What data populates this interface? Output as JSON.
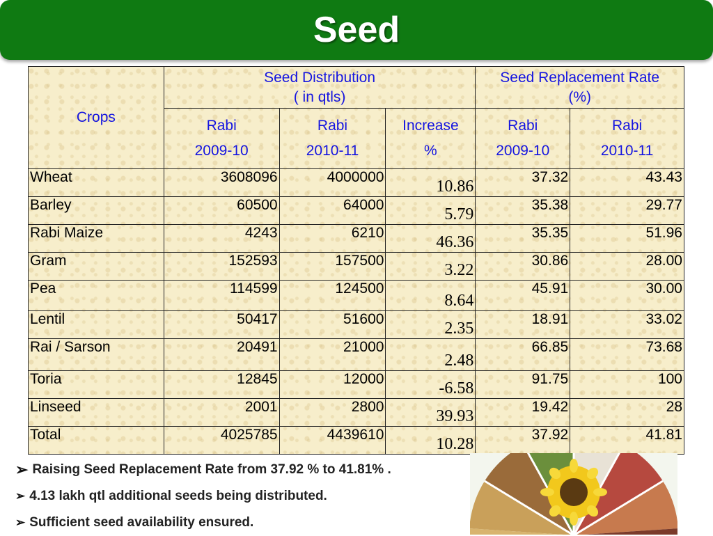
{
  "title": "Seed",
  "table": {
    "header": {
      "crops": "Crops",
      "distribution": [
        "Seed Distribution",
        "( in qtls)"
      ],
      "replacement": [
        "Seed Replacement Rate",
        "(%)"
      ],
      "sub": [
        [
          "Rabi",
          "2009-10"
        ],
        [
          "Rabi",
          "2010-11"
        ],
        [
          "Increase",
          "%"
        ],
        [
          "Rabi",
          "2009-10"
        ],
        [
          "Rabi",
          "2010-11"
        ]
      ]
    },
    "rows": [
      {
        "crop": "Wheat",
        "d2009": "3608096",
        "d2010": "4000000",
        "inc": "10.86",
        "r2009": "37.32",
        "r2010": "43.43"
      },
      {
        "crop": "Barley",
        "d2009": "60500",
        "d2010": "64000",
        "inc": "5.79",
        "r2009": "35.38",
        "r2010": "29.77"
      },
      {
        "crop": "Rabi Maize",
        "d2009": "4243",
        "d2010": "6210",
        "inc": "46.36",
        "r2009": "35.35",
        "r2010": "51.96"
      },
      {
        "crop": "Gram",
        "d2009": "152593",
        "d2010": "157500",
        "inc": "3.22",
        "r2009": "30.86",
        "r2010": "28.00"
      },
      {
        "crop": "Pea",
        "d2009": "114599",
        "d2010": "124500",
        "inc": "8.64",
        "r2009": "45.91",
        "r2010": "30.00"
      },
      {
        "crop": "Lentil",
        "d2009": "50417",
        "d2010": "51600",
        "inc": "2.35",
        "r2009": "18.91",
        "r2010": "33.02"
      },
      {
        "crop": "Rai / Sarson",
        "d2009": "20491",
        "d2010": "21000",
        "inc": "2.48",
        "r2009": "66.85",
        "r2010": "73.68"
      },
      {
        "crop": "Toria",
        "d2009": "12845",
        "d2010": "12000",
        "inc": "-6.58",
        "r2009": "91.75",
        "r2010": "100"
      },
      {
        "crop": "Linseed",
        "d2009": "2001",
        "d2010": "2800",
        "inc": "39.93",
        "r2009": "19.42",
        "r2010": "28"
      },
      {
        "crop": "Total",
        "d2009": "4025785",
        "d2010": "4439610",
        "inc": "10.28",
        "r2009": "37.92",
        "r2010": "41.81"
      }
    ]
  },
  "bullets": [
    "Raising Seed Replacement Rate from 37.92 % to 41.81% .",
    "4.13 lakh qtl additional seeds being distributed.",
    "Sufficient seed availability ensured."
  ],
  "bullet_marker": "➢",
  "colors": {
    "title_bar": "#0f7a12",
    "header_text": "#1515e0",
    "table_background": "#f7eecb"
  }
}
